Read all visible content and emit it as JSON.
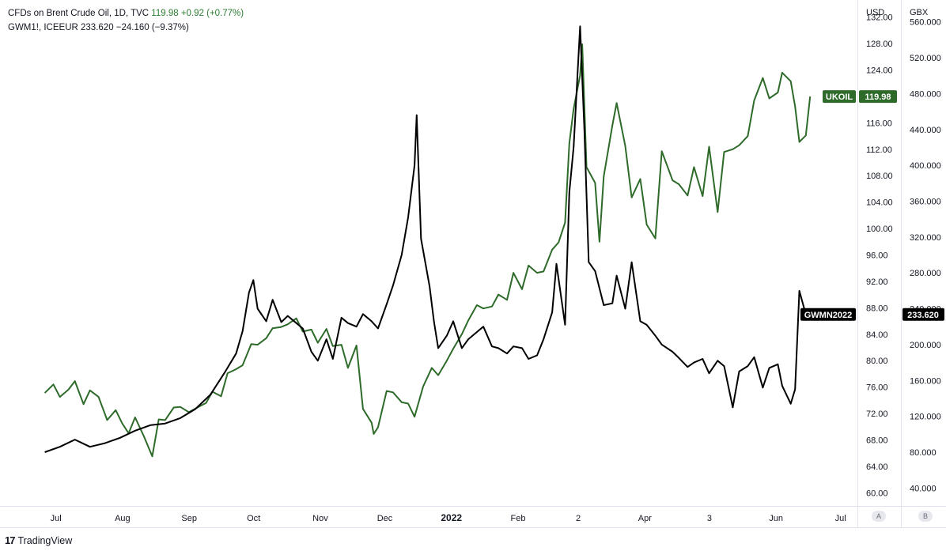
{
  "legend": {
    "line1": {
      "name": "CFDs on Brent Crude Oil, 1D, TVC",
      "last": "119.98",
      "change": "+0.92 (+0.77%)"
    },
    "line2": {
      "name": "GWM1!, ICEEUR",
      "last": "233.620",
      "change": "−24.160 (−9.37%)"
    }
  },
  "brand": {
    "logo_text": "17",
    "name": "TradingView"
  },
  "scale_buttons": {
    "left": "A",
    "right": "B"
  },
  "colors": {
    "brent": "#2e6b2a",
    "gas": "#000000",
    "grid": "#f0f3fa",
    "axis_text": "#131722"
  },
  "chart_data": {
    "type": "line",
    "x_ticks": [
      "Jul",
      "Aug",
      "Sep",
      "Oct",
      "Nov",
      "Dec",
      "2022",
      "Feb",
      "2",
      "Apr",
      "3",
      "Jun",
      "Jul"
    ],
    "y_axis_left": {
      "unit": "USD",
      "ticks": [
        "132.00",
        "128.00",
        "124.00",
        "120.00",
        "116.00",
        "112.00",
        "108.00",
        "104.00",
        "100.00",
        "96.00",
        "92.00",
        "88.00",
        "84.00",
        "80.00",
        "76.00",
        "72.00",
        "68.00",
        "64.00",
        "60.00"
      ],
      "range": [
        58,
        134
      ]
    },
    "y_axis_right": {
      "unit": "GBX",
      "ticks": [
        "560.000",
        "520.000",
        "480.000",
        "440.000",
        "400.000",
        "360.000",
        "320.000",
        "280.000",
        "240.000",
        "200.000",
        "160.000",
        "120.000",
        "80.000",
        "40.000"
      ],
      "range": [
        20,
        580
      ]
    },
    "series": [
      {
        "name": "UKOIL",
        "axis": "USD",
        "last_label": "119.98",
        "points": [
          [
            "2021-07-01",
            75.1
          ],
          [
            "2021-07-05",
            76.4
          ],
          [
            "2021-07-08",
            74.5
          ],
          [
            "2021-07-12",
            75.6
          ],
          [
            "2021-07-15",
            76.9
          ],
          [
            "2021-07-19",
            73.4
          ],
          [
            "2021-07-22",
            75.5
          ],
          [
            "2021-07-26",
            74.5
          ],
          [
            "2021-07-30",
            71.0
          ],
          [
            "2021-08-03",
            72.5
          ],
          [
            "2021-08-06",
            70.5
          ],
          [
            "2021-08-09",
            69.0
          ],
          [
            "2021-08-12",
            71.4
          ],
          [
            "2021-08-16",
            68.6
          ],
          [
            "2021-08-19",
            66.3
          ],
          [
            "2021-08-20",
            65.5
          ],
          [
            "2021-08-23",
            71.1
          ],
          [
            "2021-08-26",
            71.0
          ],
          [
            "2021-08-30",
            72.9
          ],
          [
            "2021-09-02",
            73.0
          ],
          [
            "2021-09-06",
            72.2
          ],
          [
            "2021-09-10",
            72.9
          ],
          [
            "2021-09-14",
            73.6
          ],
          [
            "2021-09-17",
            75.3
          ],
          [
            "2021-09-21",
            74.6
          ],
          [
            "2021-09-24",
            78.1
          ],
          [
            "2021-09-28",
            78.7
          ],
          [
            "2021-10-01",
            79.3
          ],
          [
            "2021-10-05",
            82.5
          ],
          [
            "2021-10-08",
            82.4
          ],
          [
            "2021-10-12",
            83.4
          ],
          [
            "2021-10-15",
            84.9
          ],
          [
            "2021-10-19",
            85.1
          ],
          [
            "2021-10-22",
            85.5
          ],
          [
            "2021-10-26",
            86.4
          ],
          [
            "2021-10-29",
            84.4
          ],
          [
            "2021-11-02",
            84.7
          ],
          [
            "2021-11-05",
            82.7
          ],
          [
            "2021-11-09",
            84.8
          ],
          [
            "2021-11-12",
            82.2
          ],
          [
            "2021-11-16",
            82.4
          ],
          [
            "2021-11-19",
            78.9
          ],
          [
            "2021-11-23",
            82.3
          ],
          [
            "2021-11-26",
            72.7
          ],
          [
            "2021-11-30",
            70.6
          ],
          [
            "2021-12-01",
            68.9
          ],
          [
            "2021-12-03",
            69.9
          ],
          [
            "2021-12-07",
            75.4
          ],
          [
            "2021-12-10",
            75.2
          ],
          [
            "2021-12-14",
            73.7
          ],
          [
            "2021-12-17",
            73.5
          ],
          [
            "2021-12-20",
            71.5
          ],
          [
            "2021-12-24",
            76.1
          ],
          [
            "2021-12-28",
            78.9
          ],
          [
            "2021-12-31",
            77.8
          ],
          [
            "2022-01-04",
            80.0
          ],
          [
            "2022-01-07",
            81.8
          ],
          [
            "2022-01-11",
            84.0
          ],
          [
            "2022-01-14",
            86.1
          ],
          [
            "2022-01-18",
            88.4
          ],
          [
            "2022-01-21",
            87.9
          ],
          [
            "2022-01-25",
            88.2
          ],
          [
            "2022-01-28",
            90.0
          ],
          [
            "2022-02-01",
            89.2
          ],
          [
            "2022-02-04",
            93.3
          ],
          [
            "2022-02-08",
            90.8
          ],
          [
            "2022-02-11",
            94.4
          ],
          [
            "2022-02-15",
            93.3
          ],
          [
            "2022-02-18",
            93.5
          ],
          [
            "2022-02-22",
            96.8
          ],
          [
            "2022-02-25",
            97.9
          ],
          [
            "2022-02-28",
            100.9
          ],
          [
            "2022-03-02",
            112.9
          ],
          [
            "2022-03-04",
            118.1
          ],
          [
            "2022-03-07",
            123.2
          ],
          [
            "2022-03-08",
            127.9
          ],
          [
            "2022-03-10",
            109.3
          ],
          [
            "2022-03-14",
            106.9
          ],
          [
            "2022-03-16",
            98.0
          ],
          [
            "2022-03-18",
            107.9
          ],
          [
            "2022-03-22",
            115.6
          ],
          [
            "2022-03-24",
            119.0
          ],
          [
            "2022-03-28",
            112.5
          ],
          [
            "2022-03-31",
            104.7
          ],
          [
            "2022-04-04",
            107.5
          ],
          [
            "2022-04-07",
            100.6
          ],
          [
            "2022-04-11",
            98.5
          ],
          [
            "2022-04-14",
            111.7
          ],
          [
            "2022-04-19",
            107.3
          ],
          [
            "2022-04-22",
            106.7
          ],
          [
            "2022-04-26",
            105.0
          ],
          [
            "2022-04-29",
            109.3
          ],
          [
            "2022-05-03",
            104.9
          ],
          [
            "2022-05-06",
            112.4
          ],
          [
            "2022-05-10",
            102.5
          ],
          [
            "2022-05-13",
            111.6
          ],
          [
            "2022-05-17",
            112.0
          ],
          [
            "2022-05-20",
            112.6
          ],
          [
            "2022-05-24",
            114.0
          ],
          [
            "2022-05-27",
            119.4
          ],
          [
            "2022-05-31",
            122.8
          ],
          [
            "2022-06-03",
            119.7
          ],
          [
            "2022-06-07",
            120.6
          ],
          [
            "2022-06-09",
            123.6
          ],
          [
            "2022-06-13",
            122.3
          ],
          [
            "2022-06-15",
            118.5
          ],
          [
            "2022-06-17",
            113.1
          ],
          [
            "2022-06-20",
            114.1
          ],
          [
            "2022-06-22",
            119.98
          ]
        ]
      },
      {
        "name": "GWMN2022",
        "axis": "GBX",
        "last_label": "233.620",
        "points": [
          [
            "2021-07-01",
            80
          ],
          [
            "2021-07-08",
            86
          ],
          [
            "2021-07-15",
            94
          ],
          [
            "2021-07-22",
            86
          ],
          [
            "2021-07-29",
            90
          ],
          [
            "2021-08-05",
            96
          ],
          [
            "2021-08-12",
            104
          ],
          [
            "2021-08-19",
            110
          ],
          [
            "2021-08-26",
            112
          ],
          [
            "2021-09-02",
            118
          ],
          [
            "2021-09-09",
            128
          ],
          [
            "2021-09-16",
            144
          ],
          [
            "2021-09-23",
            170
          ],
          [
            "2021-09-28",
            190
          ],
          [
            "2021-10-01",
            215
          ],
          [
            "2021-10-04",
            258
          ],
          [
            "2021-10-06",
            272
          ],
          [
            "2021-10-08",
            240
          ],
          [
            "2021-10-12",
            226
          ],
          [
            "2021-10-15",
            250
          ],
          [
            "2021-10-19",
            225
          ],
          [
            "2021-10-22",
            232
          ],
          [
            "2021-10-26",
            224
          ],
          [
            "2021-10-29",
            218
          ],
          [
            "2021-11-02",
            192
          ],
          [
            "2021-11-05",
            182
          ],
          [
            "2021-11-09",
            206
          ],
          [
            "2021-11-12",
            184
          ],
          [
            "2021-11-16",
            230
          ],
          [
            "2021-11-19",
            224
          ],
          [
            "2021-11-23",
            220
          ],
          [
            "2021-11-26",
            234
          ],
          [
            "2021-11-30",
            226
          ],
          [
            "2021-12-03",
            218
          ],
          [
            "2021-12-07",
            245
          ],
          [
            "2021-12-10",
            266
          ],
          [
            "2021-12-14",
            300
          ],
          [
            "2021-12-17",
            342
          ],
          [
            "2021-12-20",
            400
          ],
          [
            "2021-12-21",
            456
          ],
          [
            "2021-12-23",
            318
          ],
          [
            "2021-12-27",
            265
          ],
          [
            "2021-12-29",
            226
          ],
          [
            "2021-12-31",
            196
          ],
          [
            "2022-01-04",
            210
          ],
          [
            "2022-01-07",
            226
          ],
          [
            "2022-01-11",
            196
          ],
          [
            "2022-01-14",
            206
          ],
          [
            "2022-01-18",
            214
          ],
          [
            "2022-01-21",
            220
          ],
          [
            "2022-01-25",
            198
          ],
          [
            "2022-01-28",
            196
          ],
          [
            "2022-02-01",
            190
          ],
          [
            "2022-02-04",
            198
          ],
          [
            "2022-02-08",
            196
          ],
          [
            "2022-02-11",
            184
          ],
          [
            "2022-02-15",
            188
          ],
          [
            "2022-02-18",
            206
          ],
          [
            "2022-02-22",
            236
          ],
          [
            "2022-02-24",
            290
          ],
          [
            "2022-02-28",
            222
          ],
          [
            "2022-03-02",
            370
          ],
          [
            "2022-03-04",
            420
          ],
          [
            "2022-03-07",
            555
          ],
          [
            "2022-03-09",
            440
          ],
          [
            "2022-03-11",
            292
          ],
          [
            "2022-03-14",
            282
          ],
          [
            "2022-03-18",
            244
          ],
          [
            "2022-03-22",
            246
          ],
          [
            "2022-03-24",
            277
          ],
          [
            "2022-03-28",
            240
          ],
          [
            "2022-03-31",
            292
          ],
          [
            "2022-04-04",
            226
          ],
          [
            "2022-04-07",
            222
          ],
          [
            "2022-04-11",
            210
          ],
          [
            "2022-04-14",
            200
          ],
          [
            "2022-04-19",
            192
          ],
          [
            "2022-04-22",
            185
          ],
          [
            "2022-04-26",
            175
          ],
          [
            "2022-04-29",
            180
          ],
          [
            "2022-05-03",
            184
          ],
          [
            "2022-05-06",
            168
          ],
          [
            "2022-05-10",
            182
          ],
          [
            "2022-05-13",
            176
          ],
          [
            "2022-05-17",
            130
          ],
          [
            "2022-05-20",
            170
          ],
          [
            "2022-05-24",
            176
          ],
          [
            "2022-05-27",
            186
          ],
          [
            "2022-05-31",
            152
          ],
          [
            "2022-06-03",
            174
          ],
          [
            "2022-06-07",
            178
          ],
          [
            "2022-06-09",
            154
          ],
          [
            "2022-06-13",
            134
          ],
          [
            "2022-06-15",
            150
          ],
          [
            "2022-06-17",
            260
          ],
          [
            "2022-06-20",
            233.62
          ]
        ]
      }
    ]
  }
}
